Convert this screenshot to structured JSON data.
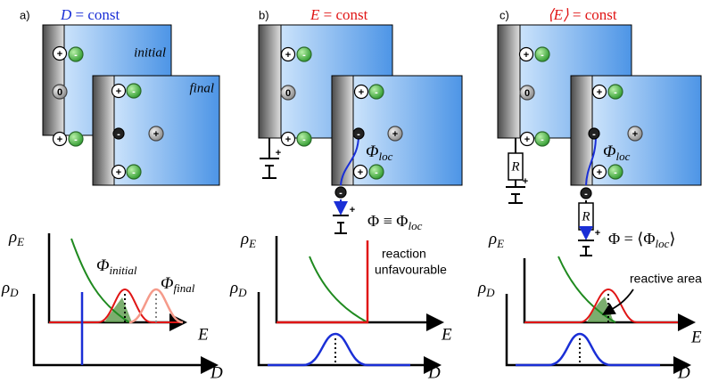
{
  "charges": {
    "plus": "+",
    "minus": "-",
    "zero": "0"
  },
  "axes": {
    "rho": "ρ",
    "E": "E",
    "D": "D"
  },
  "panels": [
    {
      "label": "a)",
      "title_symbol": "D",
      "title_rest": " = const",
      "box_labels": [
        "initial",
        "final"
      ],
      "curve_labels": [
        {
          "symbol": "Φ",
          "sub": "initial"
        },
        {
          "symbol": "Φ",
          "sub": "final"
        }
      ]
    },
    {
      "label": "b)",
      "title_symbol": "E",
      "title_rest": " = const",
      "potential": {
        "symbol": "Φ",
        "sub": "loc"
      },
      "equation": {
        "lhs": "Φ ≡ Φ",
        "sub": "loc"
      },
      "annotation": [
        "reaction",
        "unfavourable"
      ]
    },
    {
      "label": "c)",
      "title_symbol": "⟨E⟩",
      "title_rest": " = const",
      "resistor": "R",
      "potential": {
        "symbol": "Φ",
        "sub": "loc"
      },
      "equation": {
        "lhs": "Φ = ⟨Φ",
        "sub": "loc",
        "close": "⟩"
      },
      "annotation": "reactive area"
    }
  ]
}
